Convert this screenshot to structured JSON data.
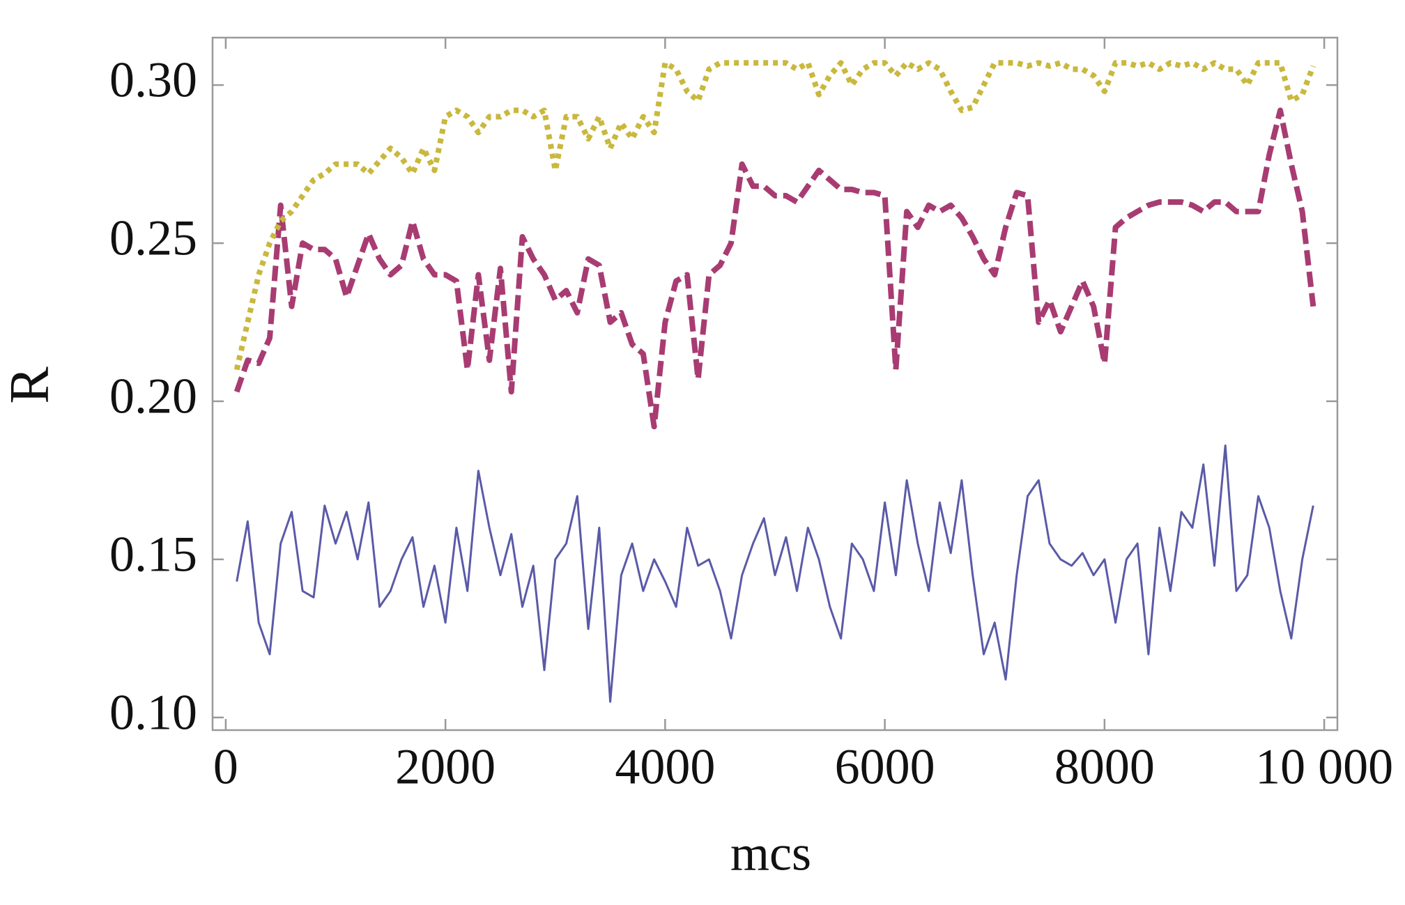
{
  "chart_data": {
    "type": "line",
    "x_label": "mcs",
    "y_label": "R",
    "x": [
      100,
      200,
      300,
      400,
      500,
      600,
      700,
      800,
      900,
      1000,
      1100,
      1200,
      1300,
      1400,
      1500,
      1600,
      1700,
      1800,
      1900,
      2000,
      2100,
      2200,
      2300,
      2400,
      2500,
      2600,
      2700,
      2800,
      2900,
      3000,
      3100,
      3200,
      3300,
      3400,
      3500,
      3600,
      3700,
      3800,
      3900,
      4000,
      4100,
      4200,
      4300,
      4400,
      4500,
      4600,
      4700,
      4800,
      4900,
      5000,
      5100,
      5200,
      5300,
      5400,
      5500,
      5600,
      5700,
      5800,
      5900,
      6000,
      6100,
      6200,
      6300,
      6400,
      6500,
      6600,
      6700,
      6800,
      6900,
      7000,
      7100,
      7200,
      7300,
      7400,
      7500,
      7600,
      7700,
      7800,
      7900,
      8000,
      8100,
      8200,
      8300,
      8400,
      8500,
      8600,
      8700,
      8800,
      8900,
      9000,
      9100,
      9200,
      9300,
      9400,
      9500,
      9600,
      9700,
      9800,
      9900
    ],
    "series": [
      {
        "color": "#5a5aa8",
        "line_style": "solid",
        "values": [
          0.143,
          0.162,
          0.13,
          0.12,
          0.155,
          0.165,
          0.14,
          0.138,
          0.167,
          0.155,
          0.165,
          0.15,
          0.168,
          0.135,
          0.14,
          0.15,
          0.157,
          0.135,
          0.148,
          0.13,
          0.16,
          0.14,
          0.178,
          0.16,
          0.145,
          0.158,
          0.135,
          0.148,
          0.115,
          0.15,
          0.155,
          0.17,
          0.128,
          0.16,
          0.105,
          0.145,
          0.155,
          0.14,
          0.15,
          0.143,
          0.135,
          0.16,
          0.148,
          0.15,
          0.14,
          0.125,
          0.145,
          0.155,
          0.163,
          0.145,
          0.157,
          0.14,
          0.16,
          0.15,
          0.135,
          0.125,
          0.155,
          0.15,
          0.14,
          0.168,
          0.145,
          0.175,
          0.155,
          0.14,
          0.168,
          0.152,
          0.175,
          0.145,
          0.12,
          0.13,
          0.112,
          0.145,
          0.17,
          0.175,
          0.155,
          0.15,
          0.148,
          0.152,
          0.145,
          0.15,
          0.13,
          0.15,
          0.155,
          0.12,
          0.16,
          0.14,
          0.165,
          0.16,
          0.18,
          0.148,
          0.186,
          0.14,
          0.145,
          0.17,
          0.16,
          0.14,
          0.125,
          0.15,
          0.167
        ]
      },
      {
        "color": "#a83c72",
        "line_style": "dashed",
        "values": [
          0.203,
          0.213,
          0.212,
          0.22,
          0.262,
          0.23,
          0.25,
          0.248,
          0.248,
          0.245,
          0.233,
          0.243,
          0.253,
          0.245,
          0.24,
          0.243,
          0.257,
          0.245,
          0.24,
          0.24,
          0.238,
          0.21,
          0.24,
          0.213,
          0.242,
          0.203,
          0.252,
          0.245,
          0.24,
          0.232,
          0.235,
          0.228,
          0.245,
          0.243,
          0.225,
          0.228,
          0.218,
          0.215,
          0.192,
          0.225,
          0.238,
          0.24,
          0.207,
          0.24,
          0.243,
          0.25,
          0.275,
          0.268,
          0.268,
          0.265,
          0.265,
          0.263,
          0.268,
          0.273,
          0.27,
          0.267,
          0.267,
          0.266,
          0.266,
          0.265,
          0.21,
          0.26,
          0.255,
          0.262,
          0.26,
          0.262,
          0.258,
          0.252,
          0.245,
          0.24,
          0.255,
          0.266,
          0.265,
          0.225,
          0.232,
          0.222,
          0.23,
          0.238,
          0.23,
          0.212,
          0.255,
          0.258,
          0.26,
          0.262,
          0.263,
          0.263,
          0.263,
          0.262,
          0.26,
          0.263,
          0.263,
          0.26,
          0.26,
          0.26,
          0.278,
          0.292,
          0.275,
          0.26,
          0.23
        ]
      },
      {
        "color": "#c9b83e",
        "line_style": "dotted",
        "values": [
          0.21,
          0.225,
          0.24,
          0.25,
          0.257,
          0.26,
          0.265,
          0.27,
          0.272,
          0.275,
          0.275,
          0.275,
          0.272,
          0.276,
          0.28,
          0.277,
          0.272,
          0.28,
          0.273,
          0.29,
          0.292,
          0.29,
          0.285,
          0.29,
          0.29,
          0.292,
          0.292,
          0.29,
          0.292,
          0.273,
          0.29,
          0.29,
          0.283,
          0.29,
          0.28,
          0.288,
          0.283,
          0.29,
          0.285,
          0.307,
          0.305,
          0.298,
          0.295,
          0.305,
          0.307,
          0.307,
          0.307,
          0.307,
          0.307,
          0.307,
          0.307,
          0.305,
          0.307,
          0.297,
          0.303,
          0.307,
          0.3,
          0.305,
          0.307,
          0.307,
          0.303,
          0.307,
          0.305,
          0.307,
          0.305,
          0.298,
          0.292,
          0.293,
          0.3,
          0.307,
          0.307,
          0.307,
          0.306,
          0.307,
          0.306,
          0.307,
          0.305,
          0.305,
          0.303,
          0.298,
          0.307,
          0.307,
          0.306,
          0.307,
          0.305,
          0.307,
          0.306,
          0.307,
          0.305,
          0.307,
          0.305,
          0.305,
          0.3,
          0.307,
          0.307,
          0.307,
          0.295,
          0.297,
          0.306
        ]
      }
    ],
    "xlim": [
      -120,
      10120
    ],
    "ylim": [
      0.096,
      0.315
    ],
    "xticks": [
      0,
      2000,
      4000,
      6000,
      8000,
      {
        "value": 10000,
        "label": "10 000"
      }
    ],
    "yticks": [
      {
        "value": 0.1,
        "label": "0.10"
      },
      0.15,
      {
        "value": 0.2,
        "label": "0.20"
      },
      0.25,
      {
        "value": 0.3,
        "label": "0.30"
      }
    ],
    "grid": false
  }
}
